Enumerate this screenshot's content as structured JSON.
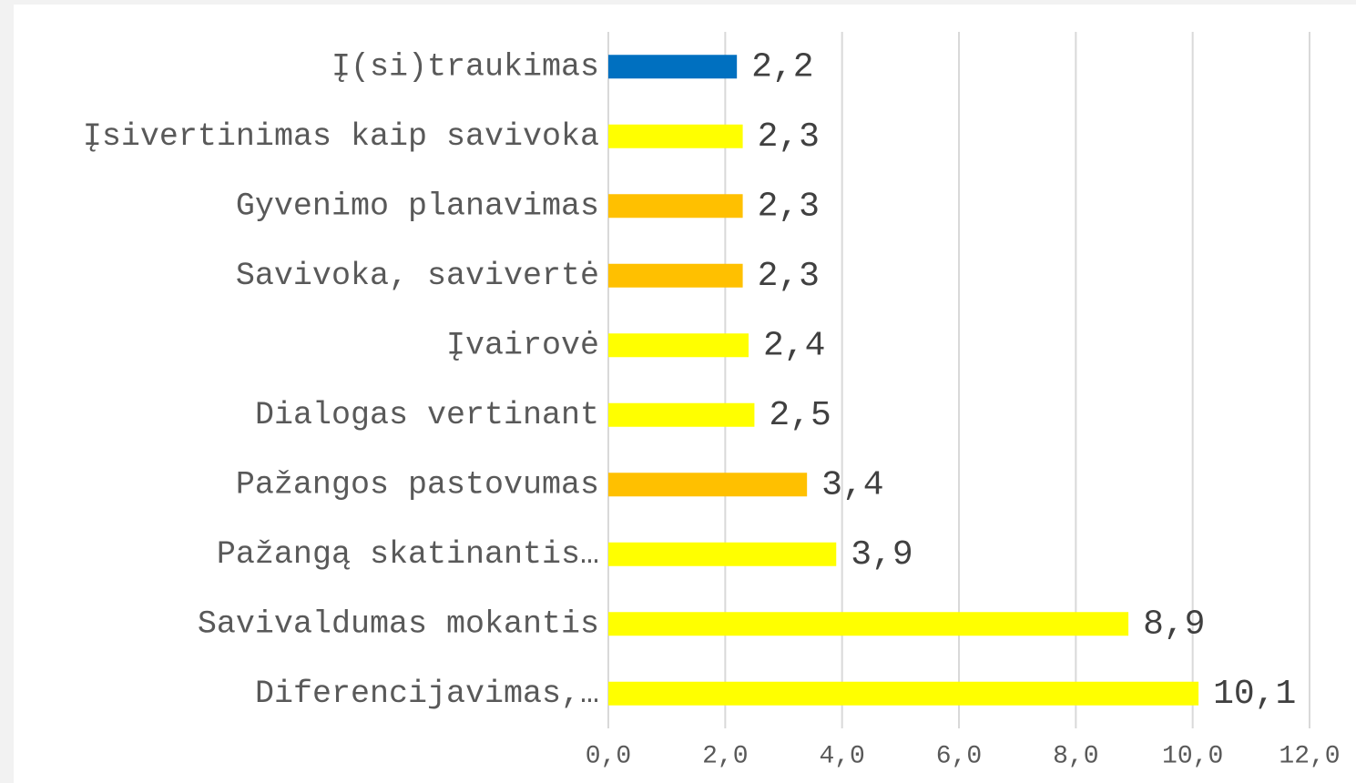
{
  "chart_data": {
    "type": "bar",
    "orientation": "horizontal",
    "categories": [
      "Į(si)traukimas",
      "Įsivertinimas kaip savivoka",
      "Gyvenimo planavimas",
      "Savivoka, savivertė",
      "Įvairovė",
      "Dialogas vertinant",
      "Pažangos pastovumas",
      "Pažangą skatinantis…",
      "Savivaldumas mokantis",
      "Diferencijavimas,…"
    ],
    "values": [
      2.2,
      2.3,
      2.3,
      2.3,
      2.4,
      2.5,
      3.4,
      3.9,
      8.9,
      10.1
    ],
    "value_labels": [
      "2,2",
      "2,3",
      "2,3",
      "2,3",
      "2,4",
      "2,5",
      "3,4",
      "3,9",
      "8,9",
      "10,1"
    ],
    "colors": [
      "#0070c0",
      "#ffff00",
      "#ffc000",
      "#ffc000",
      "#ffff00",
      "#ffff00",
      "#ffc000",
      "#ffff00",
      "#ffff00",
      "#ffff00"
    ],
    "xlim": [
      0,
      12
    ],
    "xticks": [
      {
        "value": 0,
        "label": "0,0"
      },
      {
        "value": 2,
        "label": "2,0"
      },
      {
        "value": 4,
        "label": "4,0"
      },
      {
        "value": 6,
        "label": "6,0"
      },
      {
        "value": 8,
        "label": "8,0"
      },
      {
        "value": 10,
        "label": "10,0"
      },
      {
        "value": 12,
        "label": "12,0"
      }
    ],
    "grid": true
  }
}
